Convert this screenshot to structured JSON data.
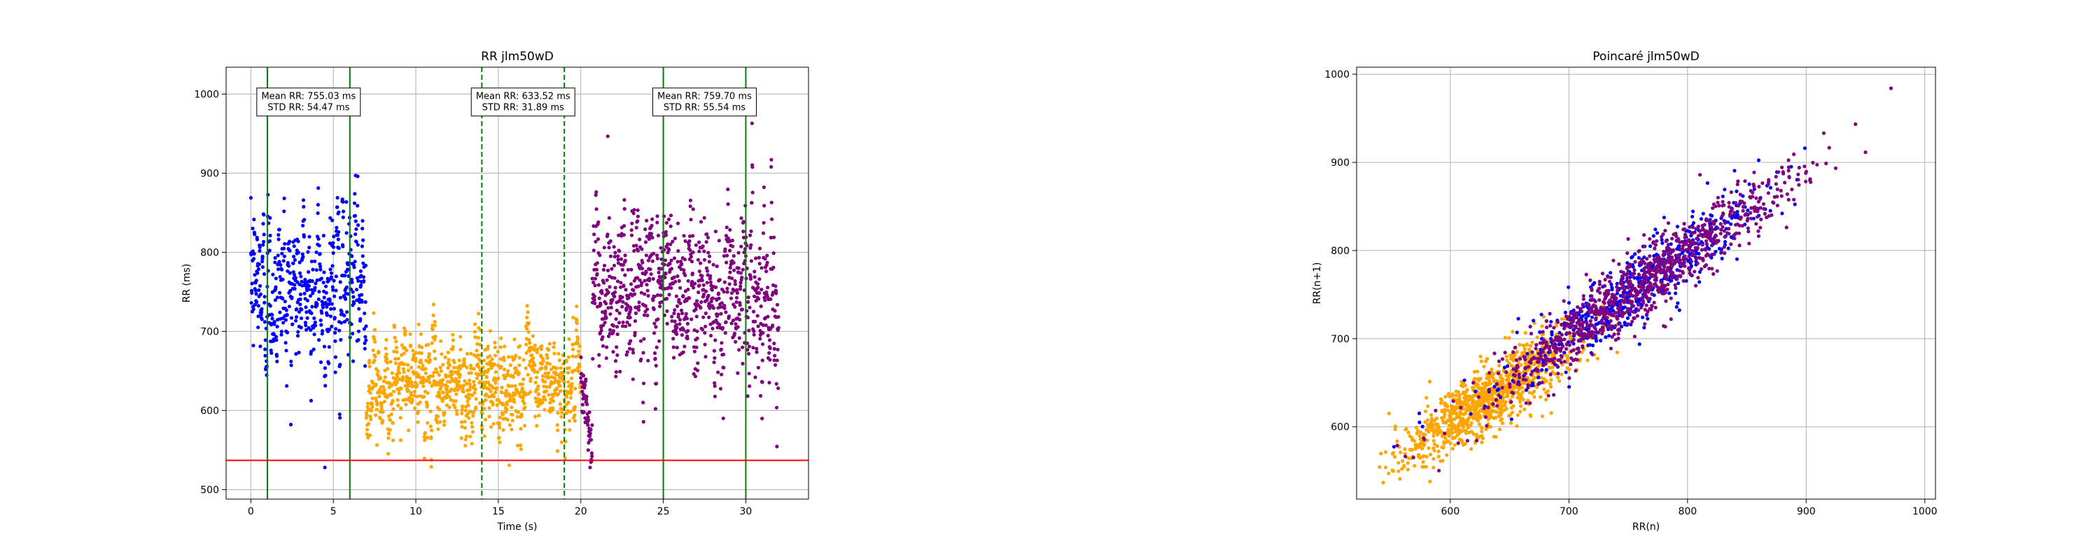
{
  "colors": {
    "blue": "#0000ff",
    "orange": "#ffa500",
    "purple": "#800080",
    "green": "#008000",
    "red": "#ff0000",
    "grid": "#b0b0b0"
  },
  "chart_data": [
    {
      "type": "scatter",
      "title": "RR jlm50wD",
      "xlabel": "Time (s)",
      "ylabel": "RR (ms)",
      "xlim": [
        -1.5,
        33.8
      ],
      "ylim": [
        488,
        1034
      ],
      "x_ticks": [
        0,
        5,
        10,
        15,
        20,
        25,
        30
      ],
      "y_ticks": [
        500,
        600,
        700,
        800,
        900,
        1000
      ],
      "grid": true,
      "series": [
        {
          "color": "blue",
          "x_range": [
            0,
            7
          ],
          "y_center": 755,
          "y_std": 54
        },
        {
          "color": "orange",
          "x_range": [
            7,
            20
          ],
          "y_center": 634,
          "y_std": 32
        },
        {
          "color": "purple",
          "x_range": [
            20,
            32
          ],
          "y_center": 760,
          "y_std": 56
        }
      ],
      "vertical_lines": [
        {
          "x": 1,
          "color": "green",
          "style": "solid"
        },
        {
          "x": 6,
          "color": "green",
          "style": "solid"
        },
        {
          "x": 14,
          "color": "green",
          "style": "dashed"
        },
        {
          "x": 19,
          "color": "green",
          "style": "dashed"
        },
        {
          "x": 25,
          "color": "green",
          "style": "solid"
        },
        {
          "x": 30,
          "color": "green",
          "style": "solid"
        }
      ],
      "horizontal_lines": [
        {
          "y": 537,
          "color": "red",
          "style": "solid"
        }
      ],
      "annotations": [
        {
          "x": 3.5,
          "y": 990,
          "lines": [
            "Mean RR: 755.03 ms",
            "STD RR: 54.47 ms"
          ]
        },
        {
          "x": 16.5,
          "y": 990,
          "lines": [
            "Mean RR: 633.52 ms",
            "STD RR: 31.89 ms"
          ]
        },
        {
          "x": 27.5,
          "y": 990,
          "lines": [
            "Mean RR: 759.70 ms",
            "STD RR: 55.54 ms"
          ]
        }
      ]
    },
    {
      "type": "scatter",
      "title": "Poincaré jlm50wD",
      "xlabel": "RR(n)",
      "ylabel": "RR(n+1)",
      "xlim": [
        521,
        1009
      ],
      "ylim": [
        518,
        1008
      ],
      "x_ticks": [
        600,
        700,
        800,
        900,
        1000
      ],
      "y_ticks": [
        600,
        700,
        800,
        900,
        1000
      ],
      "grid": true,
      "series": [
        {
          "color": "orange",
          "center": 634,
          "spread": 32
        },
        {
          "color": "blue",
          "center": 760,
          "spread": 45
        },
        {
          "color": "purple",
          "center": 760,
          "spread": 55
        }
      ]
    }
  ]
}
